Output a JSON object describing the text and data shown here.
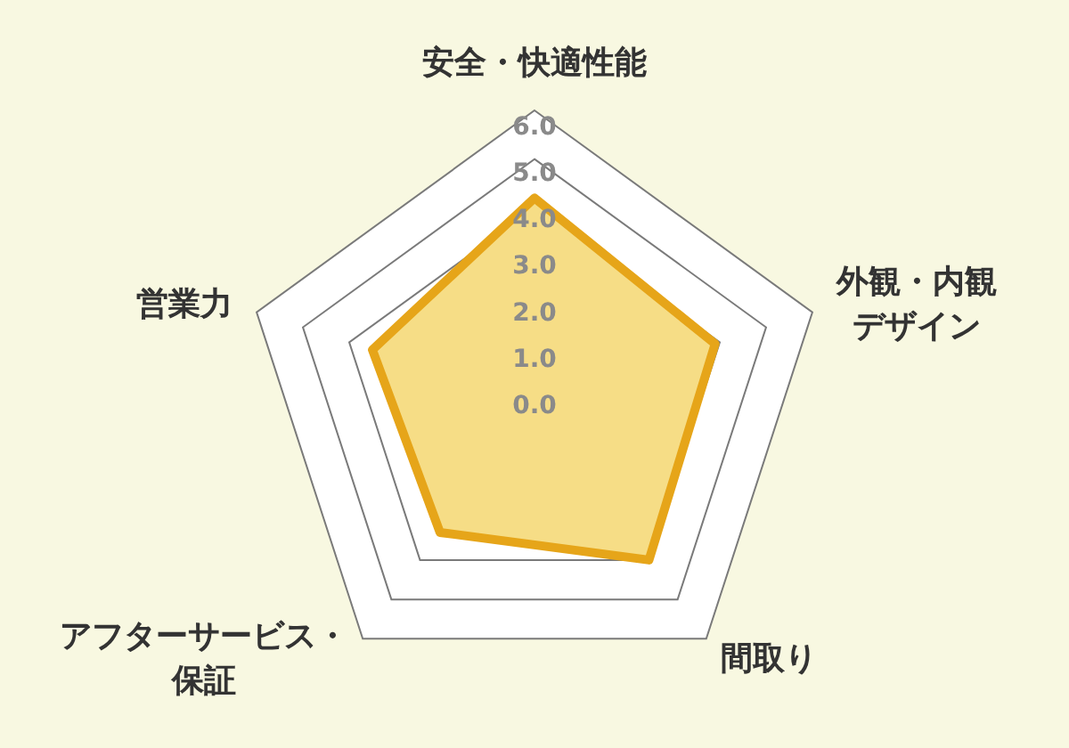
{
  "chart_data": {
    "type": "radar",
    "categories": [
      "安全・快適性能",
      "外観・内観デザイン",
      "間取り",
      "アフターサービス・保証",
      "営業力"
    ],
    "series": [
      {
        "color": "#e6a519",
        "values": [
          4.2,
          3.9,
          4.0,
          3.3,
          3.5
        ]
      }
    ],
    "ylim": [
      0,
      6
    ],
    "yticks": [
      {
        "value": 0,
        "label": "0.0"
      },
      {
        "value": 1,
        "label": "1.0"
      },
      {
        "value": 2,
        "label": "2.0"
      },
      {
        "value": 3,
        "label": "3.0"
      },
      {
        "value": 4,
        "label": "4.0"
      },
      {
        "value": 5,
        "label": "5.0"
      },
      {
        "value": 6,
        "label": "6.0"
      }
    ],
    "grid": true
  }
}
